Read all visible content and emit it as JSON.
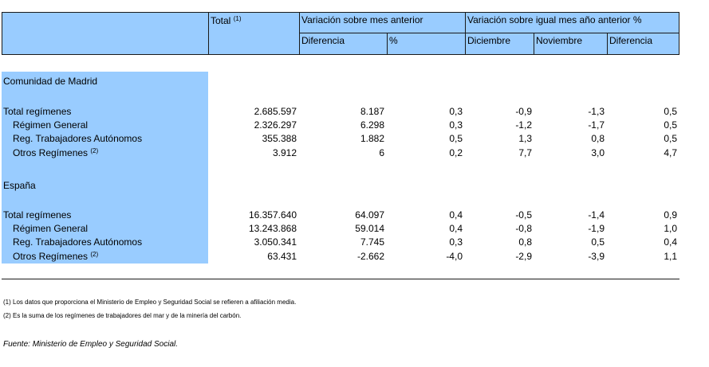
{
  "header": {
    "total": "Total",
    "total_sup": "(1)",
    "var_mes_anterior": "Variación sobre mes anterior",
    "var_igual_mes": "Variación sobre igual mes año anterior %",
    "diferencia": "Diferencia",
    "pct": "%",
    "diciembre": "Diciembre",
    "noviembre": "Noviembre",
    "diferencia2": "Diferencia"
  },
  "sections": [
    {
      "title": "Comunidad de Madrid",
      "rows": [
        {
          "label": "Total regímenes",
          "sup": "",
          "values": [
            "2.685.597",
            "8.187",
            "0,3",
            "-0,9",
            "-1,3",
            "0,5"
          ]
        },
        {
          "label": "Régimen General",
          "sup": "",
          "values": [
            "2.326.297",
            "6.298",
            "0,3",
            "-1,2",
            "-1,7",
            "0,5"
          ]
        },
        {
          "label": "Reg. Trabajadores Autónomos",
          "sup": "",
          "values": [
            "355.388",
            "1.882",
            "0,5",
            "1,3",
            "0,8",
            "0,5"
          ]
        },
        {
          "label": "Otros Regímenes",
          "sup": "(2)",
          "values": [
            "3.912",
            "6",
            "0,2",
            "7,7",
            "3,0",
            "4,7"
          ]
        }
      ]
    },
    {
      "title": "España",
      "rows": [
        {
          "label": "Total regímenes",
          "sup": "",
          "values": [
            "16.357.640",
            "64.097",
            "0,4",
            "-0,5",
            "-1,4",
            "0,9"
          ]
        },
        {
          "label": "Régimen General",
          "sup": "",
          "values": [
            "13.243.868",
            "59.014",
            "0,4",
            "-0,8",
            "-1,9",
            "1,0"
          ]
        },
        {
          "label": "Reg. Trabajadores Autónomos",
          "sup": "",
          "values": [
            "3.050.341",
            "7.745",
            "0,3",
            "0,8",
            "0,5",
            "0,4"
          ]
        },
        {
          "label": "Otros Regímenes",
          "sup": "(2)",
          "values": [
            "63.431",
            "-2.662",
            "-4,0",
            "-2,9",
            "-3,9",
            "1,1"
          ]
        }
      ]
    }
  ],
  "notes": [
    "(1) Los datos que proporciona el Ministerio de Empleo y Seguridad Social se refieren a afiliación media.",
    "(2) Es la suma de los regímenes de trabajadores del mar y de la minería del carbón."
  ],
  "source": "Fuente: Ministerio de Empleo y Seguridad Social."
}
